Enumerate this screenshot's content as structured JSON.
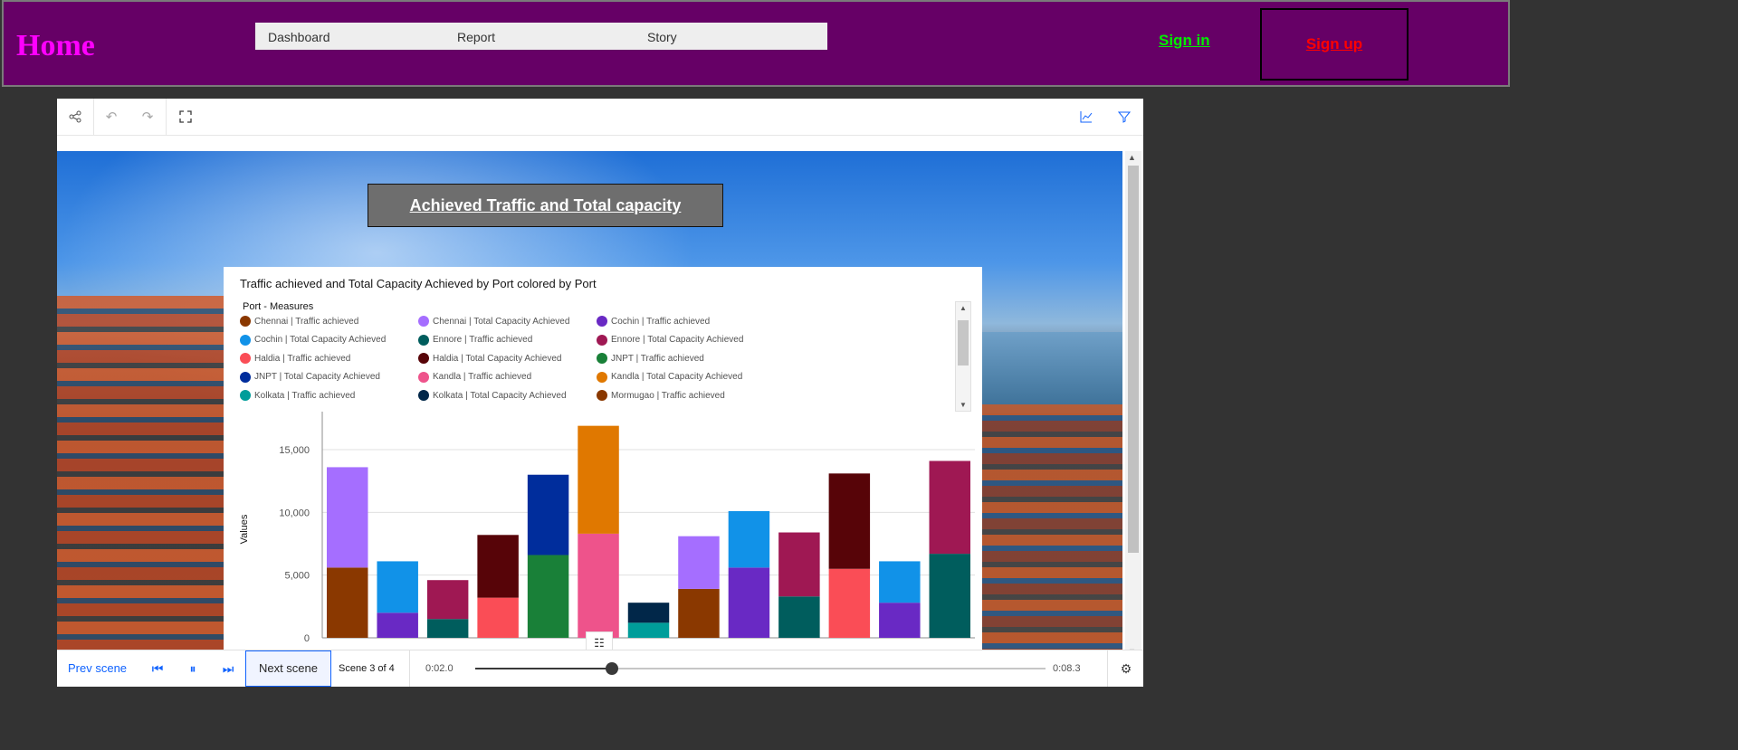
{
  "nav": {
    "home": "Home",
    "links": [
      "Dashboard",
      "Report",
      "Story"
    ],
    "sign_in": "Sign in",
    "sign_up": "Sign up"
  },
  "story": {
    "slide_title": "Achieved Traffic and Total capacity",
    "chart_title": "Traffic achieved and Total Capacity Achieved by Port colored by Port",
    "legend_title": "Port - Measures",
    "legend": [
      {
        "label": "Chennai | Traffic achieved",
        "color": "#8a3800"
      },
      {
        "label": "Chennai | Total Capacity Achieved",
        "color": "#a56eff"
      },
      {
        "label": "Cochin | Traffic achieved",
        "color": "#6929c4"
      },
      {
        "label": "Cochin | Total Capacity Achieved",
        "color": "#1192e8"
      },
      {
        "label": "Ennore | Traffic achieved",
        "color": "#005d5d"
      },
      {
        "label": "Ennore | Total Capacity Achieved",
        "color": "#9f1853"
      },
      {
        "label": "Haldia | Traffic achieved",
        "color": "#fa4d56"
      },
      {
        "label": "Haldia | Total Capacity Achieved",
        "color": "#570408"
      },
      {
        "label": "JNPT | Traffic achieved",
        "color": "#198038"
      },
      {
        "label": "JNPT | Total Capacity Achieved",
        "color": "#002d9c"
      },
      {
        "label": "Kandla | Traffic achieved",
        "color": "#ee538b"
      },
      {
        "label": "Kandla | Total Capacity Achieved",
        "color": "#e07800"
      },
      {
        "label": "Kolkata | Traffic achieved",
        "color": "#009d9a"
      },
      {
        "label": "Kolkata | Total Capacity Achieved",
        "color": "#012749"
      },
      {
        "label": "Mormugao | Traffic achieved",
        "color": "#8a3800"
      }
    ]
  },
  "player": {
    "prev": "Prev scene",
    "next": "Next scene",
    "scene": "Scene 3 of 4",
    "current_time": "0:02.0",
    "total_time": "0:08.3",
    "progress": 0.24
  },
  "chart_data": {
    "type": "bar",
    "stacked": true,
    "title": "Traffic achieved and Total Capacity Achieved by Port colored by Port",
    "ylabel": "Values",
    "xlabel": "",
    "ylim": [
      0,
      18000
    ],
    "yticks": [
      0,
      5000,
      10000,
      15000
    ],
    "ytick_labels": [
      "0",
      "5,000",
      "10,000",
      "15,000"
    ],
    "bars": [
      {
        "traffic": 5600,
        "capacity": 8000,
        "traffic_color": "#8a3800",
        "capacity_color": "#a56eff"
      },
      {
        "traffic": 2000,
        "capacity": 4100,
        "traffic_color": "#6929c4",
        "capacity_color": "#1192e8"
      },
      {
        "traffic": 1500,
        "capacity": 3100,
        "traffic_color": "#005d5d",
        "capacity_color": "#9f1853"
      },
      {
        "traffic": 3200,
        "capacity": 5000,
        "traffic_color": "#fa4d56",
        "capacity_color": "#570408"
      },
      {
        "traffic": 6600,
        "capacity": 6400,
        "traffic_color": "#198038",
        "capacity_color": "#002d9c"
      },
      {
        "traffic": 8300,
        "capacity": 8600,
        "traffic_color": "#ee538b",
        "capacity_color": "#e07800"
      },
      {
        "traffic": 1200,
        "capacity": 1600,
        "traffic_color": "#009d9a",
        "capacity_color": "#012749"
      },
      {
        "traffic": 3900,
        "capacity": 4200,
        "traffic_color": "#8a3800",
        "capacity_color": "#a56eff"
      },
      {
        "traffic": 5600,
        "capacity": 4500,
        "traffic_color": "#6929c4",
        "capacity_color": "#1192e8"
      },
      {
        "traffic": 3300,
        "capacity": 5100,
        "traffic_color": "#005d5d",
        "capacity_color": "#9f1853"
      },
      {
        "traffic": 5500,
        "capacity": 7600,
        "traffic_color": "#fa4d56",
        "capacity_color": "#570408"
      },
      {
        "traffic": 2800,
        "capacity": 3300,
        "traffic_color": "#6929c4",
        "capacity_color": "#1192e8"
      },
      {
        "traffic": 6700,
        "capacity": 7400,
        "traffic_color": "#005d5d",
        "capacity_color": "#9f1853"
      }
    ]
  }
}
